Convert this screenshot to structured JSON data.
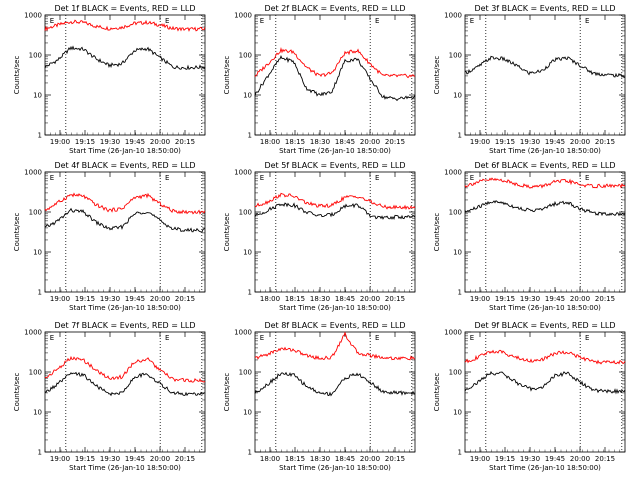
{
  "figure": {
    "x_ticks": [
      "18:00",
      "18:15",
      "18:30",
      "18:45",
      "20:00",
      "20:15"
    ],
    "x_ticks_shifted": [
      "19:00",
      "19:15",
      "19:30",
      "19:45",
      "20:00",
      "20:15"
    ],
    "y_ticks": [
      "1",
      "10",
      "100",
      "1000"
    ],
    "xlabel": "Start Time (26-Jan-10 18:50:00)",
    "ylabel": "Counts/sec",
    "marker": "E",
    "colors": {
      "events": "#000000",
      "lld": "#ff0000",
      "axes": "#000000"
    }
  },
  "chart_data": [
    {
      "type": "line",
      "title": "Det 1f BLACK = Events, RED = LLD",
      "xlabel": "Start Time (26-Jan-10 18:50:00)",
      "ylabel": "Counts/sec",
      "x_ticks": [
        "19:00",
        "19:15",
        "19:30",
        "19:45",
        "20:00",
        "20:15"
      ],
      "yscale": "log",
      "ylim": [
        1,
        1000
      ],
      "x": [
        0,
        0.08,
        0.16,
        0.24,
        0.32,
        0.4,
        0.48,
        0.56,
        0.64,
        0.72,
        0.8,
        0.88,
        1
      ],
      "series": [
        {
          "color": "#ff0000",
          "values": [
            450,
            560,
            680,
            650,
            520,
            460,
            490,
            620,
            650,
            560,
            460,
            440,
            450
          ]
        },
        {
          "color": "#000000",
          "values": [
            50,
            75,
            150,
            140,
            80,
            55,
            60,
            130,
            145,
            85,
            50,
            48,
            50
          ]
        }
      ],
      "events_vlines_frac": [
        0.13,
        0.72,
        0.98
      ]
    },
    {
      "type": "line",
      "title": "Det 2f BLACK = Events, RED = LLD",
      "xlabel": "Start Time (26-Jan-10 18:50:00)",
      "ylabel": "Counts/sec",
      "x_ticks": [
        "18:00",
        "18:15",
        "18:30",
        "18:45",
        "20:00",
        "20:15"
      ],
      "yscale": "log",
      "ylim": [
        1,
        1000
      ],
      "x": [
        0,
        0.08,
        0.16,
        0.24,
        0.32,
        0.4,
        0.48,
        0.56,
        0.64,
        0.72,
        0.8,
        0.88,
        1
      ],
      "series": [
        {
          "color": "#ff0000",
          "values": [
            30,
            60,
            130,
            120,
            50,
            30,
            35,
            110,
            130,
            60,
            30,
            30,
            30
          ]
        },
        {
          "color": "#000000",
          "values": [
            10,
            30,
            85,
            70,
            15,
            10,
            12,
            70,
            80,
            25,
            9,
            8,
            9
          ]
        }
      ],
      "events_vlines_frac": [
        0.13,
        0.72,
        0.98
      ]
    },
    {
      "type": "line",
      "title": "Det 3f BLACK = Events, RED = LLD",
      "xlabel": "Start Time (26-Jan-10 18:50:00)",
      "ylabel": "Counts/sec",
      "x_ticks": [
        "19:00",
        "19:15",
        "19:30",
        "19:45",
        "20:00",
        "20:15"
      ],
      "yscale": "log",
      "ylim": [
        1,
        1000
      ],
      "x": [
        0,
        0.08,
        0.16,
        0.24,
        0.32,
        0.4,
        0.48,
        0.56,
        0.64,
        0.72,
        0.8,
        0.88,
        1
      ],
      "series": [
        {
          "color": "#000000",
          "values": [
            35,
            50,
            85,
            80,
            55,
            35,
            40,
            75,
            85,
            55,
            35,
            32,
            30
          ]
        }
      ],
      "events_vlines_frac": [
        0.13,
        0.72,
        0.98
      ]
    },
    {
      "type": "line",
      "title": "Det 4f BLACK = Events, RED = LLD",
      "xlabel": "Start Time (26-Jan-10 18:50:00)",
      "ylabel": "Counts/sec",
      "x_ticks": [
        "19:00",
        "19:15",
        "19:30",
        "19:45",
        "20:00",
        "20:15"
      ],
      "yscale": "log",
      "ylim": [
        1,
        1000
      ],
      "x": [
        0,
        0.08,
        0.16,
        0.24,
        0.32,
        0.4,
        0.48,
        0.56,
        0.64,
        0.72,
        0.8,
        0.88,
        1
      ],
      "series": [
        {
          "color": "#ff0000",
          "values": [
            110,
            170,
            270,
            250,
            150,
            110,
            120,
            230,
            260,
            160,
            105,
            100,
            100
          ]
        },
        {
          "color": "#000000",
          "values": [
            40,
            60,
            110,
            100,
            55,
            38,
            42,
            90,
            105,
            60,
            38,
            35,
            35
          ]
        }
      ],
      "events_vlines_frac": [
        0.13,
        0.72,
        0.98
      ]
    },
    {
      "type": "line",
      "title": "Det 5f BLACK = Events, RED = LLD",
      "xlabel": "Start Time (26-Jan-10 18:50:00)",
      "ylabel": "Counts/sec",
      "x_ticks": [
        "18:00",
        "18:15",
        "18:30",
        "18:45",
        "20:00",
        "20:15"
      ],
      "yscale": "log",
      "ylim": [
        1,
        1000
      ],
      "x": [
        0,
        0.08,
        0.16,
        0.24,
        0.32,
        0.4,
        0.48,
        0.56,
        0.64,
        0.72,
        0.8,
        0.88,
        1
      ],
      "series": [
        {
          "color": "#ff0000",
          "values": [
            140,
            180,
            270,
            250,
            170,
            140,
            145,
            230,
            250,
            180,
            135,
            130,
            130
          ]
        },
        {
          "color": "#000000",
          "values": [
            80,
            110,
            160,
            150,
            100,
            80,
            85,
            140,
            150,
            80,
            70,
            75,
            75
          ]
        }
      ],
      "events_vlines_frac": [
        0.13,
        0.72,
        0.98
      ]
    },
    {
      "type": "line",
      "title": "Det 6f BLACK = Events, RED = LLD",
      "xlabel": "Start Time (26-Jan-10 18:50:00)",
      "ylabel": "Counts/sec",
      "x_ticks": [
        "19:00",
        "19:15",
        "19:30",
        "19:45",
        "20:00",
        "20:15"
      ],
      "yscale": "log",
      "ylim": [
        1,
        1000
      ],
      "x": [
        0,
        0.08,
        0.16,
        0.24,
        0.32,
        0.4,
        0.48,
        0.56,
        0.64,
        0.72,
        0.8,
        0.88,
        1
      ],
      "series": [
        {
          "color": "#ff0000",
          "values": [
            450,
            560,
            650,
            620,
            500,
            430,
            440,
            560,
            600,
            480,
            440,
            450,
            450
          ]
        },
        {
          "color": "#000000",
          "values": [
            100,
            130,
            180,
            170,
            130,
            110,
            115,
            160,
            175,
            120,
            95,
            90,
            90
          ]
        }
      ],
      "events_vlines_frac": [
        0.13,
        0.72,
        0.98
      ]
    },
    {
      "type": "line",
      "title": "Det 7f BLACK = Events, RED = LLD",
      "xlabel": "Start Time (26-Jan-10 18:50:00)",
      "ylabel": "Counts/sec",
      "x_ticks": [
        "19:00",
        "19:15",
        "19:30",
        "19:45",
        "20:00",
        "20:15"
      ],
      "yscale": "log",
      "ylim": [
        1,
        1000
      ],
      "x": [
        0,
        0.08,
        0.16,
        0.24,
        0.32,
        0.4,
        0.48,
        0.56,
        0.64,
        0.72,
        0.8,
        0.88,
        1
      ],
      "series": [
        {
          "color": "#ff0000",
          "values": [
            70,
            120,
            220,
            200,
            110,
            70,
            75,
            180,
            210,
            110,
            65,
            62,
            60
          ]
        },
        {
          "color": "#000000",
          "values": [
            30,
            50,
            90,
            85,
            45,
            28,
            30,
            75,
            90,
            50,
            30,
            28,
            28
          ]
        }
      ],
      "events_vlines_frac": [
        0.13,
        0.72,
        0.98
      ]
    },
    {
      "type": "line",
      "title": "Det 8f BLACK = Events, RED = LLD",
      "xlabel": "Start Time (26-Jan-10 18:50:00)",
      "ylabel": "Counts/sec",
      "x_ticks": [
        "18:00",
        "18:15",
        "18:30",
        "18:45",
        "20:00",
        "20:15"
      ],
      "yscale": "log",
      "ylim": [
        1,
        1000
      ],
      "x": [
        0,
        0.08,
        0.16,
        0.24,
        0.32,
        0.4,
        0.48,
        0.56,
        0.64,
        0.72,
        0.8,
        0.88,
        1
      ],
      "series": [
        {
          "color": "#ff0000",
          "values": [
            220,
            280,
            380,
            360,
            260,
            220,
            230,
            900,
            300,
            260,
            230,
            220,
            220
          ]
        },
        {
          "color": "#000000",
          "values": [
            30,
            50,
            90,
            85,
            45,
            30,
            28,
            70,
            90,
            55,
            32,
            30,
            30
          ]
        }
      ],
      "events_vlines_frac": [
        0.13,
        0.72,
        0.98
      ]
    },
    {
      "type": "line",
      "title": "Det 9f BLACK = Events, RED = LLD",
      "xlabel": "Start Time (26-Jan-10 18:50:00)",
      "ylabel": "Counts/sec",
      "x_ticks": [
        "19:00",
        "19:15",
        "19:30",
        "19:45",
        "20:00",
        "20:15"
      ],
      "yscale": "log",
      "ylim": [
        1,
        1000
      ],
      "x": [
        0,
        0.08,
        0.16,
        0.24,
        0.32,
        0.4,
        0.48,
        0.56,
        0.64,
        0.72,
        0.8,
        0.88,
        1
      ],
      "series": [
        {
          "color": "#ff0000",
          "values": [
            180,
            230,
            330,
            310,
            230,
            190,
            200,
            290,
            320,
            230,
            180,
            175,
            175
          ]
        },
        {
          "color": "#000000",
          "values": [
            35,
            55,
            95,
            90,
            55,
            38,
            40,
            80,
            95,
            55,
            35,
            33,
            33
          ]
        }
      ],
      "events_vlines_frac": [
        0.13,
        0.72,
        0.98
      ]
    }
  ]
}
